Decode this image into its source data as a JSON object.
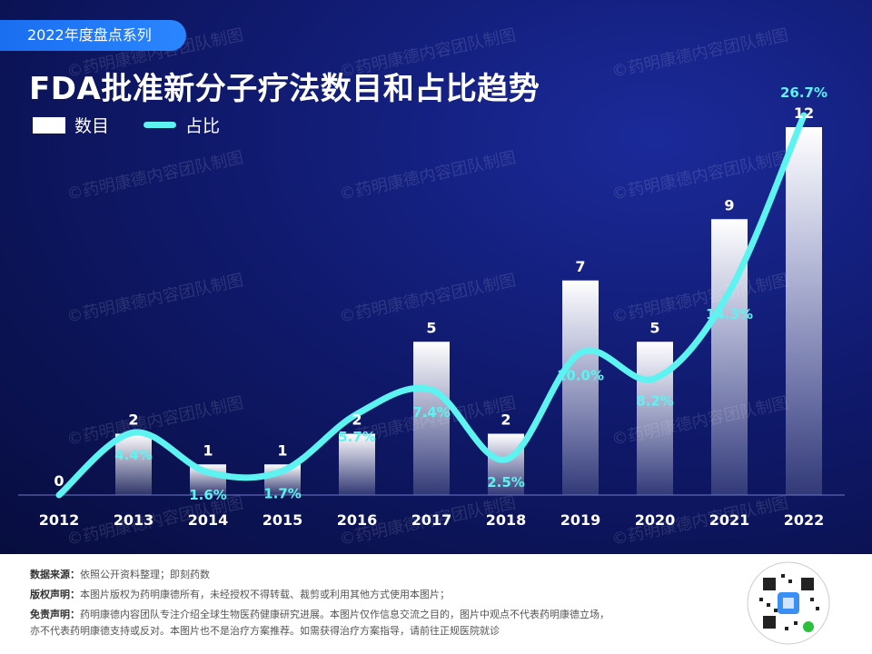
{
  "header": {
    "series_tag": "2022年度盘点系列",
    "title": "FDA批准新分子疗法数目和占比趋势"
  },
  "legend": {
    "bar_label": "数目",
    "line_label": "占比"
  },
  "watermark": "©药明康德内容团队制图",
  "colors": {
    "line": "#5cf3f1",
    "bar_top": "#ffffff",
    "bar_bottom": "#2a3380",
    "background": "#0d1660"
  },
  "chart_data": {
    "type": "bar",
    "categories": [
      "2012",
      "2013",
      "2014",
      "2015",
      "2016",
      "2017",
      "2018",
      "2019",
      "2020",
      "2021",
      "2022"
    ],
    "series": [
      {
        "name": "数目",
        "type": "bar",
        "values": [
          0,
          2,
          1,
          1,
          2,
          5,
          2,
          7,
          5,
          9,
          12
        ],
        "labels": [
          "0",
          "2",
          "1",
          "1",
          "2",
          "5",
          "2",
          "7",
          "5",
          "9",
          "12"
        ]
      },
      {
        "name": "占比",
        "type": "line",
        "values": [
          0,
          4.4,
          1.6,
          1.7,
          5.7,
          7.4,
          2.5,
          10.0,
          8.2,
          14.3,
          26.7
        ],
        "labels": [
          "",
          "4.4%",
          "1.6%",
          "1.7%",
          "5.7%",
          "7.4%",
          "2.5%",
          "10.0%",
          "8.2%",
          "14.3%",
          "26.7%"
        ]
      }
    ]
  },
  "footer": {
    "source_label": "数据来源：",
    "source_text": "依照公开资料整理；即刻药数",
    "copyright_label": "版权声明：",
    "copyright_text": "本图片版权为药明康德所有，未经授权不得转载、裁剪或利用其他方式使用本图片；",
    "disclaimer_label": "免责声明：",
    "disclaimer_text": "药明康德内容团队专注介绍全球生物医药健康研究进展。本图片仅作信息交流之目的，图片中观点不代表药明康德立场，",
    "disclaimer_text2": "亦不代表药明康德支持或反对。本图片也不是治疗方案推荐。如需获得治疗方案指导，请前往正规医院就诊"
  }
}
